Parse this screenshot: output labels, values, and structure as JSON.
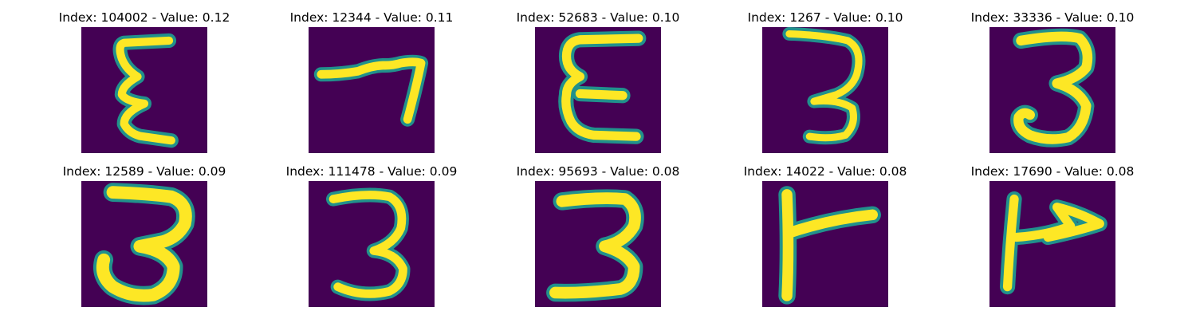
{
  "colors": {
    "background": "#440154",
    "stroke_core": "#fde725",
    "stroke_edge": "#21918c"
  },
  "panels": [
    {
      "index": "104002",
      "value": "0.12",
      "title": "Index: 104002 - Value: 0.12",
      "glyph": "epsilon-shape"
    },
    {
      "index": "12344",
      "value": "0.11",
      "title": "Index: 12344 - Value: 0.11",
      "glyph": "seven-shape"
    },
    {
      "index": "52683",
      "value": "0.10",
      "title": "Index: 52683 - Value: 0.10",
      "glyph": "epsilon-shape"
    },
    {
      "index": "1267",
      "value": "0.10",
      "title": "Index: 1267 - Value: 0.10",
      "glyph": "three-shape"
    },
    {
      "index": "33336",
      "value": "0.10",
      "title": "Index: 33336 - Value: 0.10",
      "glyph": "three-shape"
    },
    {
      "index": "12589",
      "value": "0.09",
      "title": "Index: 12589 - Value: 0.09",
      "glyph": "three-shape"
    },
    {
      "index": "111478",
      "value": "0.09",
      "title": "Index: 111478 - Value: 0.09",
      "glyph": "three-shape"
    },
    {
      "index": "95693",
      "value": "0.08",
      "title": "Index: 95693 - Value: 0.08",
      "glyph": "three-shape"
    },
    {
      "index": "14022",
      "value": "0.08",
      "title": "Index: 14022 - Value: 0.08",
      "glyph": "flag-shape"
    },
    {
      "index": "17690",
      "value": "0.08",
      "title": "Index: 17690 - Value: 0.08",
      "glyph": "flag-shape"
    }
  ]
}
